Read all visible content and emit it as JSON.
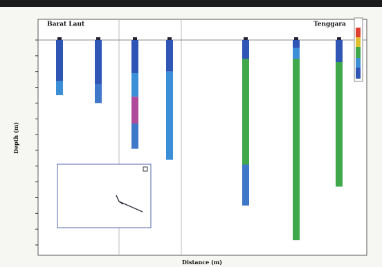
{
  "chart_data": {
    "type": "borehole",
    "title_left": "Barat Laut",
    "title_right": "Tenggara",
    "ylabel": "Depth (m)",
    "xlabel": "Distance (m)",
    "ylim": [
      0,
      130
    ],
    "yticks": [
      0,
      10,
      20,
      30,
      40,
      50,
      60,
      70,
      80,
      90,
      100,
      110,
      120,
      130
    ],
    "boreholes": [
      {
        "segments": [
          {
            "top": 0,
            "bottom": 26,
            "color": "#2f55b5"
          },
          {
            "top": 26,
            "bottom": 35,
            "color": "#3b8fd6"
          }
        ]
      },
      {
        "segments": [
          {
            "top": 0,
            "bottom": 28,
            "color": "#2f55b5"
          },
          {
            "top": 28,
            "bottom": 40,
            "color": "#3f78c8"
          }
        ]
      },
      {
        "segments": [
          {
            "top": 0,
            "bottom": 21,
            "color": "#2f55b5"
          },
          {
            "top": 21,
            "bottom": 36,
            "color": "#3b8fd6"
          },
          {
            "top": 36,
            "bottom": 53,
            "color": "#b04a9a"
          },
          {
            "top": 53,
            "bottom": 69,
            "color": "#3f78c8"
          }
        ]
      },
      {
        "segments": [
          {
            "top": 0,
            "bottom": 20,
            "color": "#2f55b5"
          },
          {
            "top": 20,
            "bottom": 76,
            "color": "#3b8fd6"
          }
        ]
      },
      {
        "segments": [
          {
            "top": 0,
            "bottom": 12,
            "color": "#2f55b5"
          },
          {
            "top": 12,
            "bottom": 79,
            "color": "#3ea84a"
          },
          {
            "top": 79,
            "bottom": 105,
            "color": "#3f78c8"
          }
        ]
      },
      {
        "segments": [
          {
            "top": 0,
            "bottom": 5,
            "color": "#2f55b5"
          },
          {
            "top": 5,
            "bottom": 12,
            "color": "#3b8fd6"
          },
          {
            "top": 12,
            "bottom": 127,
            "color": "#3ea84a"
          }
        ]
      },
      {
        "segments": [
          {
            "top": 0,
            "bottom": 14,
            "color": "#2f55b5"
          },
          {
            "top": 14,
            "bottom": 93,
            "color": "#3ea84a"
          }
        ]
      }
    ]
  }
}
